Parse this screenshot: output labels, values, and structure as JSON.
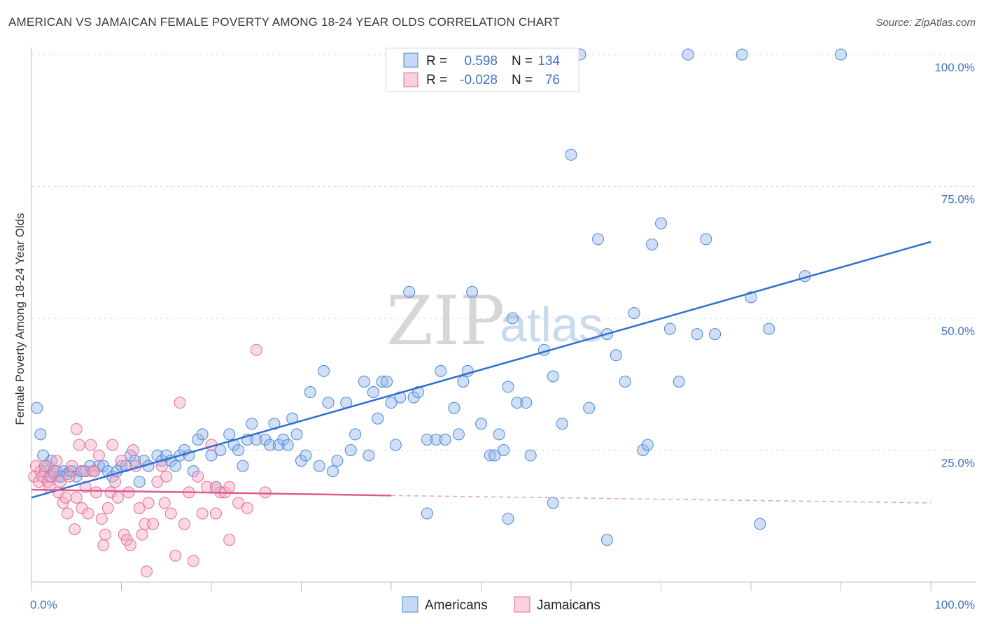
{
  "title": "AMERICAN VS JAMAICAN FEMALE POVERTY AMONG 18-24 YEAR OLDS CORRELATION CHART",
  "source": "Source: ZipAtlas.com",
  "watermark": {
    "zip": "ZIP",
    "atlas": "atlas"
  },
  "colors": {
    "americans": "#4a86d8",
    "americans_fill": "rgba(150,185,235,0.45)",
    "jamaicans": "#e46d97",
    "jamaicans_fill": "rgba(245,170,195,0.45)",
    "axis_text": "#3f74c9",
    "grid": "#dcdcdc"
  },
  "legend": {
    "rows": [
      {
        "r_label": "R =",
        "r_value": "0.598",
        "n_label": "N =",
        "n_value": "134"
      },
      {
        "r_label": "R =",
        "r_value": "-0.028",
        "n_label": "N =",
        "n_value": "76"
      }
    ]
  },
  "bottom_legend": [
    "Americans",
    "Jamaicans"
  ],
  "chart_data": {
    "type": "scatter",
    "ylabel": "Female Poverty Among 18-24 Year Olds",
    "xlabel": "",
    "x_tick_labels": [
      "0.0%",
      "100.0%"
    ],
    "y_tick_labels": [
      "25.0%",
      "50.0%",
      "75.0%",
      "100.0%"
    ],
    "xlim": [
      0,
      100
    ],
    "ylim": [
      0,
      100
    ],
    "grid": true,
    "series": [
      {
        "name": "Americans",
        "trend": {
          "x": [
            0,
            100
          ],
          "y": [
            16.0,
            64.5
          ],
          "style": "solid"
        },
        "points": [
          [
            0.6,
            33
          ],
          [
            1,
            28
          ],
          [
            1.3,
            24
          ],
          [
            1.5,
            21
          ],
          [
            1.8,
            22
          ],
          [
            2,
            20
          ],
          [
            2.2,
            23
          ],
          [
            2.5,
            20.5
          ],
          [
            2.8,
            21
          ],
          [
            3,
            20
          ],
          [
            3.3,
            20
          ],
          [
            3.6,
            21
          ],
          [
            4,
            20.5
          ],
          [
            4.3,
            21
          ],
          [
            4.6,
            21
          ],
          [
            5,
            20
          ],
          [
            5.5,
            21
          ],
          [
            6,
            21
          ],
          [
            6.5,
            22
          ],
          [
            7,
            21
          ],
          [
            7.5,
            22
          ],
          [
            8,
            22
          ],
          [
            8.5,
            21
          ],
          [
            9,
            20
          ],
          [
            9.5,
            21
          ],
          [
            10,
            22
          ],
          [
            10.5,
            22
          ],
          [
            11,
            24
          ],
          [
            11.5,
            23
          ],
          [
            12,
            19
          ],
          [
            12.5,
            23
          ],
          [
            13,
            22
          ],
          [
            14,
            24
          ],
          [
            14.5,
            23
          ],
          [
            15,
            24
          ],
          [
            15.5,
            23
          ],
          [
            16,
            22
          ],
          [
            16.5,
            24
          ],
          [
            17,
            25
          ],
          [
            17.5,
            24
          ],
          [
            18,
            21
          ],
          [
            18.5,
            27
          ],
          [
            19,
            28
          ],
          [
            20,
            24
          ],
          [
            20.5,
            18
          ],
          [
            21,
            25
          ],
          [
            22,
            28
          ],
          [
            22.5,
            26
          ],
          [
            23,
            25
          ],
          [
            23.5,
            22
          ],
          [
            24,
            27
          ],
          [
            24.5,
            30
          ],
          [
            25,
            27
          ],
          [
            26,
            27
          ],
          [
            26.5,
            26
          ],
          [
            27,
            30
          ],
          [
            27.5,
            26
          ],
          [
            28,
            27
          ],
          [
            28.5,
            26
          ],
          [
            29,
            31
          ],
          [
            29.5,
            28
          ],
          [
            30,
            23
          ],
          [
            30.5,
            24
          ],
          [
            31,
            36
          ],
          [
            32,
            22
          ],
          [
            32.5,
            40
          ],
          [
            33,
            34
          ],
          [
            33.5,
            21
          ],
          [
            34,
            23
          ],
          [
            35,
            34
          ],
          [
            35.5,
            25
          ],
          [
            36,
            28
          ],
          [
            37,
            38
          ],
          [
            37.5,
            24
          ],
          [
            38,
            36
          ],
          [
            38.5,
            31
          ],
          [
            39,
            38
          ],
          [
            39.5,
            38
          ],
          [
            40,
            34
          ],
          [
            40.5,
            26
          ],
          [
            41,
            35
          ],
          [
            42,
            55
          ],
          [
            42.5,
            35
          ],
          [
            43,
            36
          ],
          [
            44,
            27
          ],
          [
            45,
            27
          ],
          [
            45.5,
            40
          ],
          [
            46,
            27
          ],
          [
            47,
            33
          ],
          [
            47.5,
            28
          ],
          [
            48,
            38
          ],
          [
            48.5,
            40
          ],
          [
            49,
            55
          ],
          [
            50,
            30
          ],
          [
            51,
            24
          ],
          [
            51.5,
            24
          ],
          [
            52,
            28
          ],
          [
            52.5,
            25
          ],
          [
            53,
            37
          ],
          [
            53.5,
            50
          ],
          [
            54,
            34
          ],
          [
            55,
            34
          ],
          [
            55.5,
            24
          ],
          [
            57,
            44
          ],
          [
            58,
            39
          ],
          [
            59,
            30
          ],
          [
            60,
            81
          ],
          [
            61,
            100
          ],
          [
            62,
            33
          ],
          [
            63,
            65
          ],
          [
            64,
            47
          ],
          [
            65,
            43
          ],
          [
            66,
            38
          ],
          [
            67,
            51
          ],
          [
            68,
            25
          ],
          [
            68.5,
            26
          ],
          [
            69,
            64
          ],
          [
            70,
            68
          ],
          [
            71,
            48
          ],
          [
            72,
            38
          ],
          [
            73,
            100
          ],
          [
            74,
            47
          ],
          [
            75,
            65
          ],
          [
            76,
            47
          ],
          [
            79,
            100
          ],
          [
            80,
            54
          ],
          [
            81,
            11
          ],
          [
            82,
            48
          ],
          [
            86,
            58
          ],
          [
            90,
            100
          ],
          [
            44,
            13
          ],
          [
            53,
            12
          ],
          [
            58,
            15
          ],
          [
            64,
            8
          ]
        ]
      },
      {
        "name": "Jamaicans",
        "trend": {
          "x": [
            0,
            40
          ],
          "y": [
            17.5,
            16.4
          ],
          "style": "solid",
          "dash_to": [
            100,
            15.0
          ]
        },
        "points": [
          [
            0.3,
            20
          ],
          [
            0.5,
            22
          ],
          [
            0.8,
            19
          ],
          [
            1,
            21
          ],
          [
            1.2,
            20
          ],
          [
            1.5,
            22
          ],
          [
            1.8,
            19
          ],
          [
            2,
            18
          ],
          [
            2.2,
            20
          ],
          [
            2.5,
            21
          ],
          [
            2.8,
            23
          ],
          [
            3,
            17
          ],
          [
            3.2,
            19
          ],
          [
            3.5,
            15
          ],
          [
            3.8,
            16
          ],
          [
            4,
            13
          ],
          [
            4.2,
            20
          ],
          [
            4.5,
            22
          ],
          [
            4.8,
            10
          ],
          [
            5,
            29
          ],
          [
            5.3,
            26
          ],
          [
            5.6,
            14
          ],
          [
            5.8,
            21
          ],
          [
            6,
            18
          ],
          [
            6.3,
            13
          ],
          [
            6.6,
            26
          ],
          [
            6.8,
            21
          ],
          [
            7,
            21
          ],
          [
            7.2,
            17
          ],
          [
            7.5,
            24
          ],
          [
            7.8,
            12
          ],
          [
            8,
            7
          ],
          [
            8.2,
            9
          ],
          [
            8.5,
            14
          ],
          [
            8.8,
            17
          ],
          [
            9,
            26
          ],
          [
            9.3,
            19
          ],
          [
            9.6,
            16
          ],
          [
            10,
            23
          ],
          [
            10.3,
            9
          ],
          [
            10.6,
            8
          ],
          [
            10.8,
            17
          ],
          [
            11,
            7
          ],
          [
            11.3,
            25
          ],
          [
            11.6,
            22
          ],
          [
            12,
            14
          ],
          [
            12.3,
            9
          ],
          [
            12.6,
            11
          ],
          [
            12.8,
            2
          ],
          [
            13,
            15
          ],
          [
            13.5,
            11
          ],
          [
            14,
            19
          ],
          [
            14.5,
            22
          ],
          [
            14.8,
            15
          ],
          [
            15,
            20
          ],
          [
            15.5,
            13
          ],
          [
            16,
            5
          ],
          [
            16.5,
            34
          ],
          [
            17,
            11
          ],
          [
            17.5,
            17
          ],
          [
            18,
            4
          ],
          [
            18.5,
            20
          ],
          [
            19,
            13
          ],
          [
            19.5,
            18
          ],
          [
            20,
            26
          ],
          [
            20.5,
            13
          ],
          [
            21,
            17
          ],
          [
            21.5,
            17
          ],
          [
            22,
            8
          ],
          [
            23,
            15
          ],
          [
            24,
            14
          ],
          [
            25,
            44
          ],
          [
            26,
            17
          ],
          [
            20.5,
            18
          ],
          [
            22,
            18
          ],
          [
            5,
            16
          ]
        ]
      }
    ]
  }
}
